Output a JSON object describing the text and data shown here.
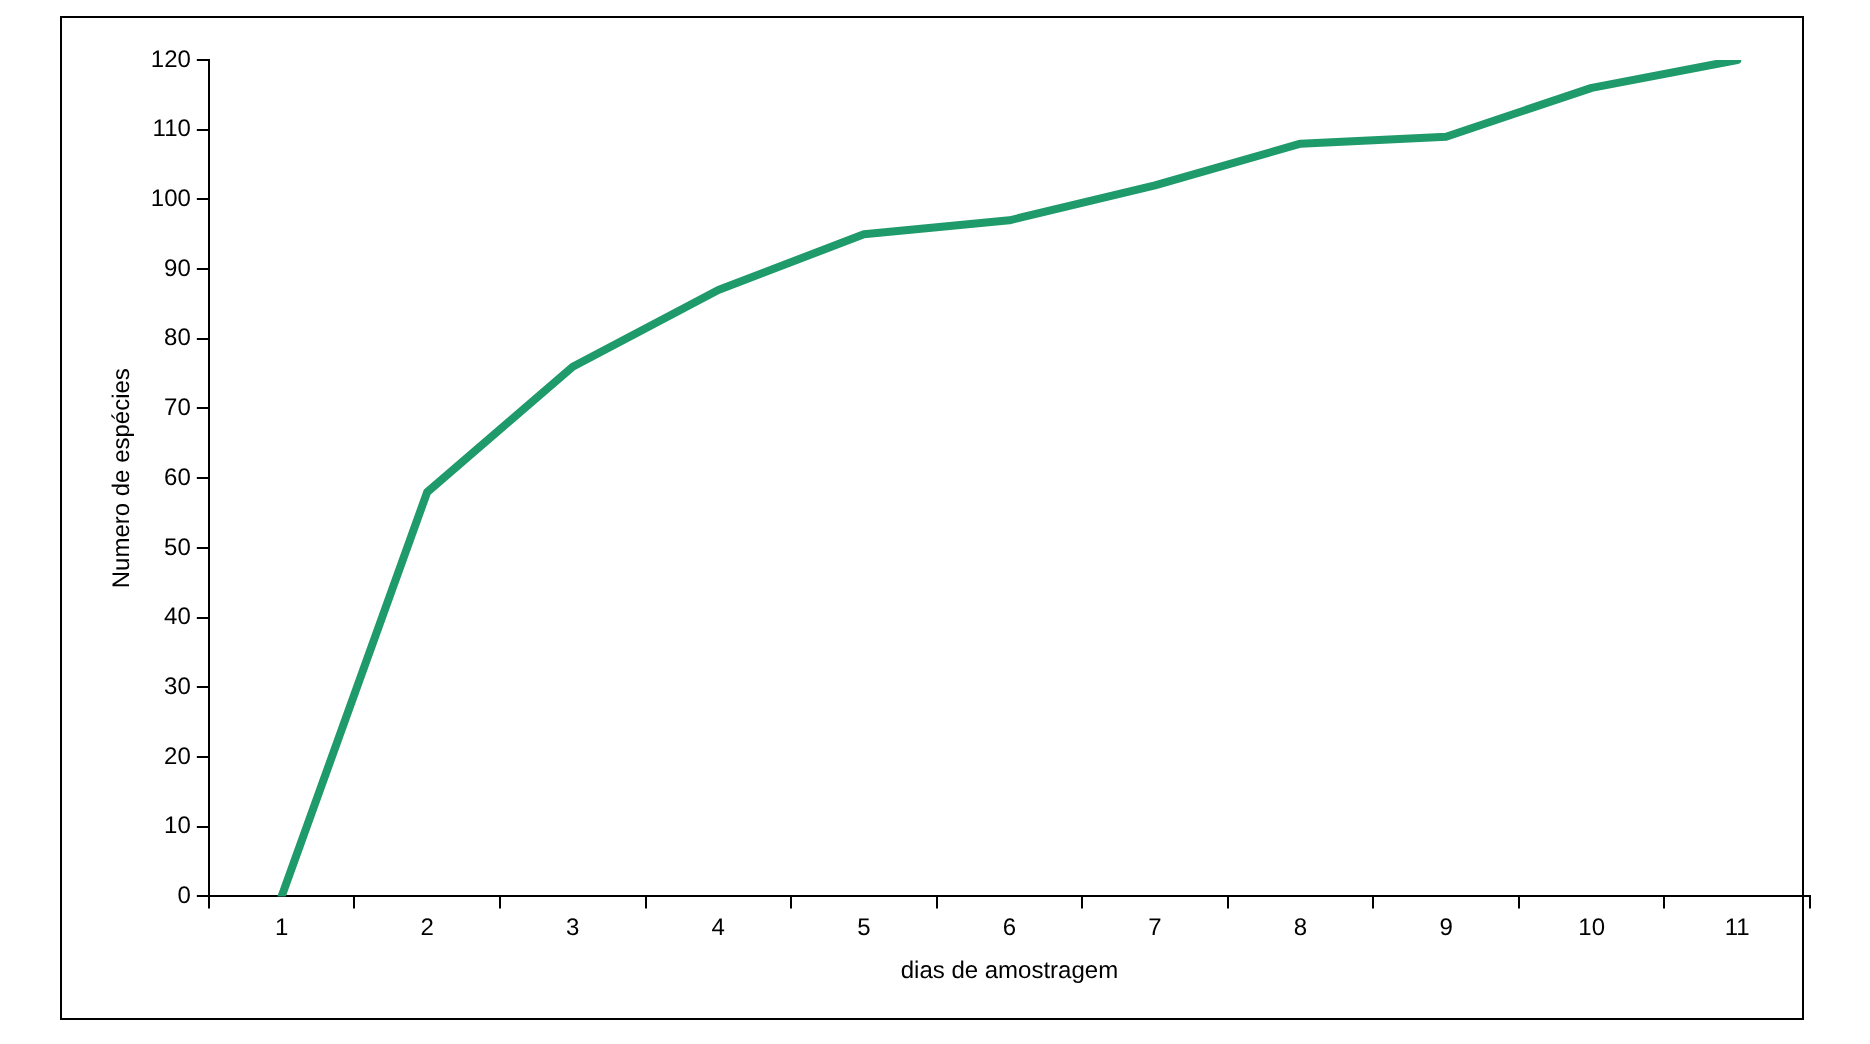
{
  "chart_data": {
    "type": "line",
    "xlabel": "dias de amostragem",
    "ylabel": "Numero de espécies",
    "categories": [
      "1",
      "2",
      "3",
      "4",
      "5",
      "6",
      "7",
      "8",
      "9",
      "10",
      "11"
    ],
    "series": [
      {
        "color": "#1f9a6a",
        "values": [
          0,
          58,
          76,
          87,
          95,
          97,
          102,
          108,
          109,
          116,
          120
        ]
      }
    ],
    "ylim": [
      0,
      120
    ],
    "yticks": [
      0,
      10,
      20,
      30,
      40,
      50,
      60,
      70,
      80,
      90,
      100,
      110,
      120
    ],
    "grid": false,
    "legend": false,
    "marker": "none",
    "line_style": "solid"
  }
}
